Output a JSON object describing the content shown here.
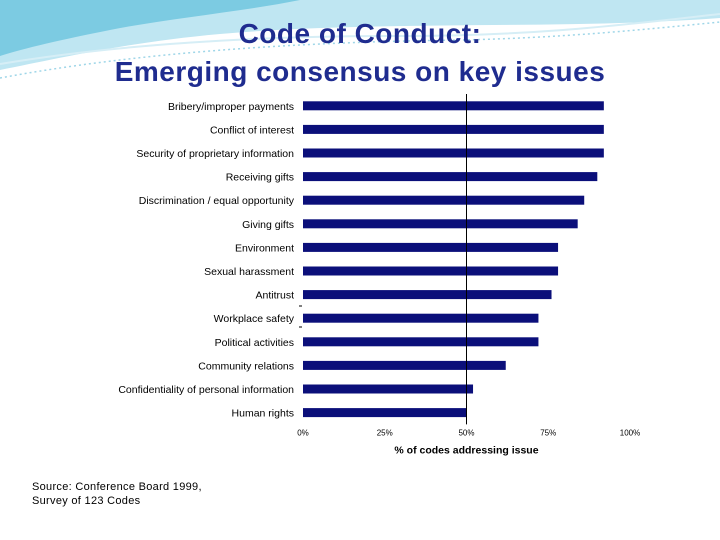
{
  "slide": {
    "title_line1": "Code of Conduct:",
    "title_line2": "Emerging consensus on key issues",
    "source_line1": "Source:  Conference Board 1999,",
    "source_line2": "Survey of 123 Codes"
  },
  "colors": {
    "title": "#1f2c8f",
    "bar": "#0b0f7a",
    "wave_light": "#bfe6f2",
    "wave_mid": "#7ccbe2"
  },
  "chart_data": {
    "type": "bar",
    "orientation": "horizontal",
    "title": "",
    "xlabel": "% of codes addressing issue",
    "ylabel": "",
    "xlim": [
      0,
      100
    ],
    "xticks": [
      "0%",
      "25%",
      "50%",
      "75%",
      "100%"
    ],
    "reference_line": 50,
    "categories": [
      "Bribery/improper payments",
      "Conflict of interest",
      "Security of proprietary information",
      "Receiving gifts",
      "Discrimination / equal opportunity",
      "Giving gifts",
      "Environment",
      "Sexual harassment",
      "Antitrust",
      "Workplace safety",
      "Political activities",
      "Community relations",
      "Confidentiality of personal information",
      "Human rights"
    ],
    "values": [
      92,
      92,
      92,
      90,
      86,
      84,
      78,
      78,
      76,
      72,
      72,
      62,
      52,
      50
    ],
    "grid": false,
    "legend": "none"
  }
}
